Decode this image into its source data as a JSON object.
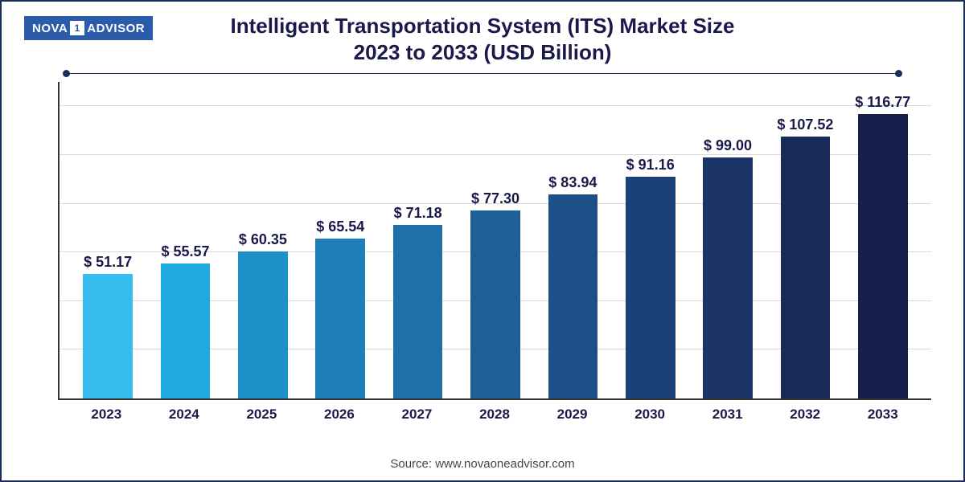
{
  "logo": {
    "part1": "NOVA",
    "boxed": "1",
    "part2": "ADVISOR",
    "bg_color": "#2a5caa",
    "text_color": "#ffffff"
  },
  "title_line1": "Intelligent Transportation System (ITS) Market Size",
  "title_line2": "2023 to 2033 (USD Billion)",
  "title_color": "#1a1a4a",
  "title_fontsize": 26,
  "chart": {
    "type": "bar",
    "categories": [
      "2023",
      "2024",
      "2025",
      "2026",
      "2027",
      "2028",
      "2029",
      "2030",
      "2031",
      "2032",
      "2033"
    ],
    "values": [
      51.17,
      55.57,
      60.35,
      65.54,
      71.18,
      77.3,
      83.94,
      91.16,
      99.0,
      107.52,
      116.77
    ],
    "value_labels": [
      "$ 51.17",
      "$ 55.57",
      "$ 60.35",
      "$ 65.54",
      "$ 71.18",
      "$ 77.30",
      "$ 83.94",
      "$ 91.16",
      "$ 99.00",
      "$ 107.52",
      "$ 116.77"
    ],
    "bar_colors": [
      "#38bdf0",
      "#1fa9e0",
      "#1e90c8",
      "#1f7fb8",
      "#1f6fa8",
      "#1e5f98",
      "#1d4f88",
      "#1c4078",
      "#1a3468",
      "#192a58",
      "#17204a"
    ],
    "y_max": 130,
    "grid_lines": [
      20,
      40,
      60,
      80,
      100,
      120
    ],
    "grid_color": "#d8d8d8",
    "axis_color": "#333333",
    "background_color": "#ffffff",
    "bar_width_pct": 64,
    "label_fontsize": 18,
    "xlabel_fontsize": 17
  },
  "source_text": "Source: www.novaoneadvisor.com",
  "frame_border_color": "#1a2b5c"
}
